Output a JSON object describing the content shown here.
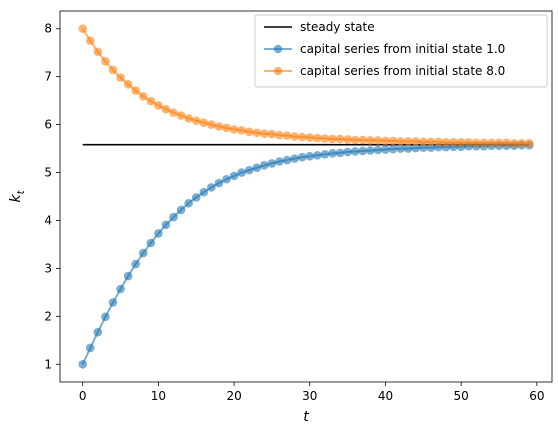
{
  "chart_data": {
    "type": "line",
    "xlabel": "t",
    "ylabel": "k",
    "ylabel_subscript": "t",
    "xlim": [
      -3,
      62
    ],
    "ylim": [
      0.63,
      8.37
    ],
    "xticks": [
      0,
      10,
      20,
      30,
      40,
      50,
      60
    ],
    "yticks": [
      1,
      2,
      3,
      4,
      5,
      6,
      7,
      8
    ],
    "grid": false,
    "legend_position": "top-right",
    "steady_state": {
      "name": "steady state",
      "color": "#000000",
      "value": 5.58,
      "x_range": [
        0,
        59
      ]
    },
    "series": [
      {
        "name": "capital series from initial state 1.0",
        "color": "#1f77b4",
        "x": [
          0,
          1,
          2,
          3,
          4,
          5,
          6,
          7,
          8,
          9,
          10,
          11,
          12,
          13,
          14,
          15,
          16,
          17,
          18,
          19,
          20,
          21,
          22,
          23,
          24,
          25,
          26,
          27,
          28,
          29,
          30,
          31,
          32,
          33,
          34,
          35,
          36,
          37,
          38,
          39,
          40,
          41,
          42,
          43,
          44,
          45,
          46,
          47,
          48,
          49,
          50,
          51,
          52,
          53,
          54,
          55,
          56,
          57,
          58,
          59
        ],
        "values": [
          1.0,
          1.34,
          1.67,
          1.99,
          2.29,
          2.57,
          2.84,
          3.09,
          3.32,
          3.53,
          3.73,
          3.91,
          4.07,
          4.22,
          4.36,
          4.48,
          4.59,
          4.69,
          4.78,
          4.86,
          4.93,
          5.0,
          5.05,
          5.1,
          5.15,
          5.19,
          5.23,
          5.26,
          5.29,
          5.32,
          5.34,
          5.36,
          5.38,
          5.4,
          5.41,
          5.43,
          5.44,
          5.45,
          5.46,
          5.47,
          5.48,
          5.49,
          5.5,
          5.5,
          5.51,
          5.52,
          5.52,
          5.53,
          5.53,
          5.54,
          5.54,
          5.55,
          5.55,
          5.55,
          5.56,
          5.56,
          5.56,
          5.56,
          5.57,
          5.57
        ]
      },
      {
        "name": "capital series from initial state 8.0",
        "color": "#ff7f0e",
        "x": [
          0,
          1,
          2,
          3,
          4,
          5,
          6,
          7,
          8,
          9,
          10,
          11,
          12,
          13,
          14,
          15,
          16,
          17,
          18,
          19,
          20,
          21,
          22,
          23,
          24,
          25,
          26,
          27,
          28,
          29,
          30,
          31,
          32,
          33,
          34,
          35,
          36,
          37,
          38,
          39,
          40,
          41,
          42,
          43,
          44,
          45,
          46,
          47,
          48,
          49,
          50,
          51,
          52,
          53,
          54,
          55,
          56,
          57,
          58,
          59
        ],
        "values": [
          8.0,
          7.75,
          7.52,
          7.32,
          7.14,
          6.98,
          6.84,
          6.71,
          6.59,
          6.49,
          6.4,
          6.32,
          6.25,
          6.19,
          6.13,
          6.08,
          6.04,
          6.0,
          5.96,
          5.93,
          5.9,
          5.88,
          5.85,
          5.83,
          5.81,
          5.8,
          5.78,
          5.77,
          5.75,
          5.74,
          5.73,
          5.72,
          5.71,
          5.7,
          5.7,
          5.69,
          5.68,
          5.68,
          5.67,
          5.67,
          5.66,
          5.66,
          5.65,
          5.65,
          5.65,
          5.64,
          5.64,
          5.64,
          5.63,
          5.63,
          5.63,
          5.63,
          5.62,
          5.62,
          5.62,
          5.62,
          5.62,
          5.61,
          5.61,
          5.61
        ]
      }
    ]
  }
}
